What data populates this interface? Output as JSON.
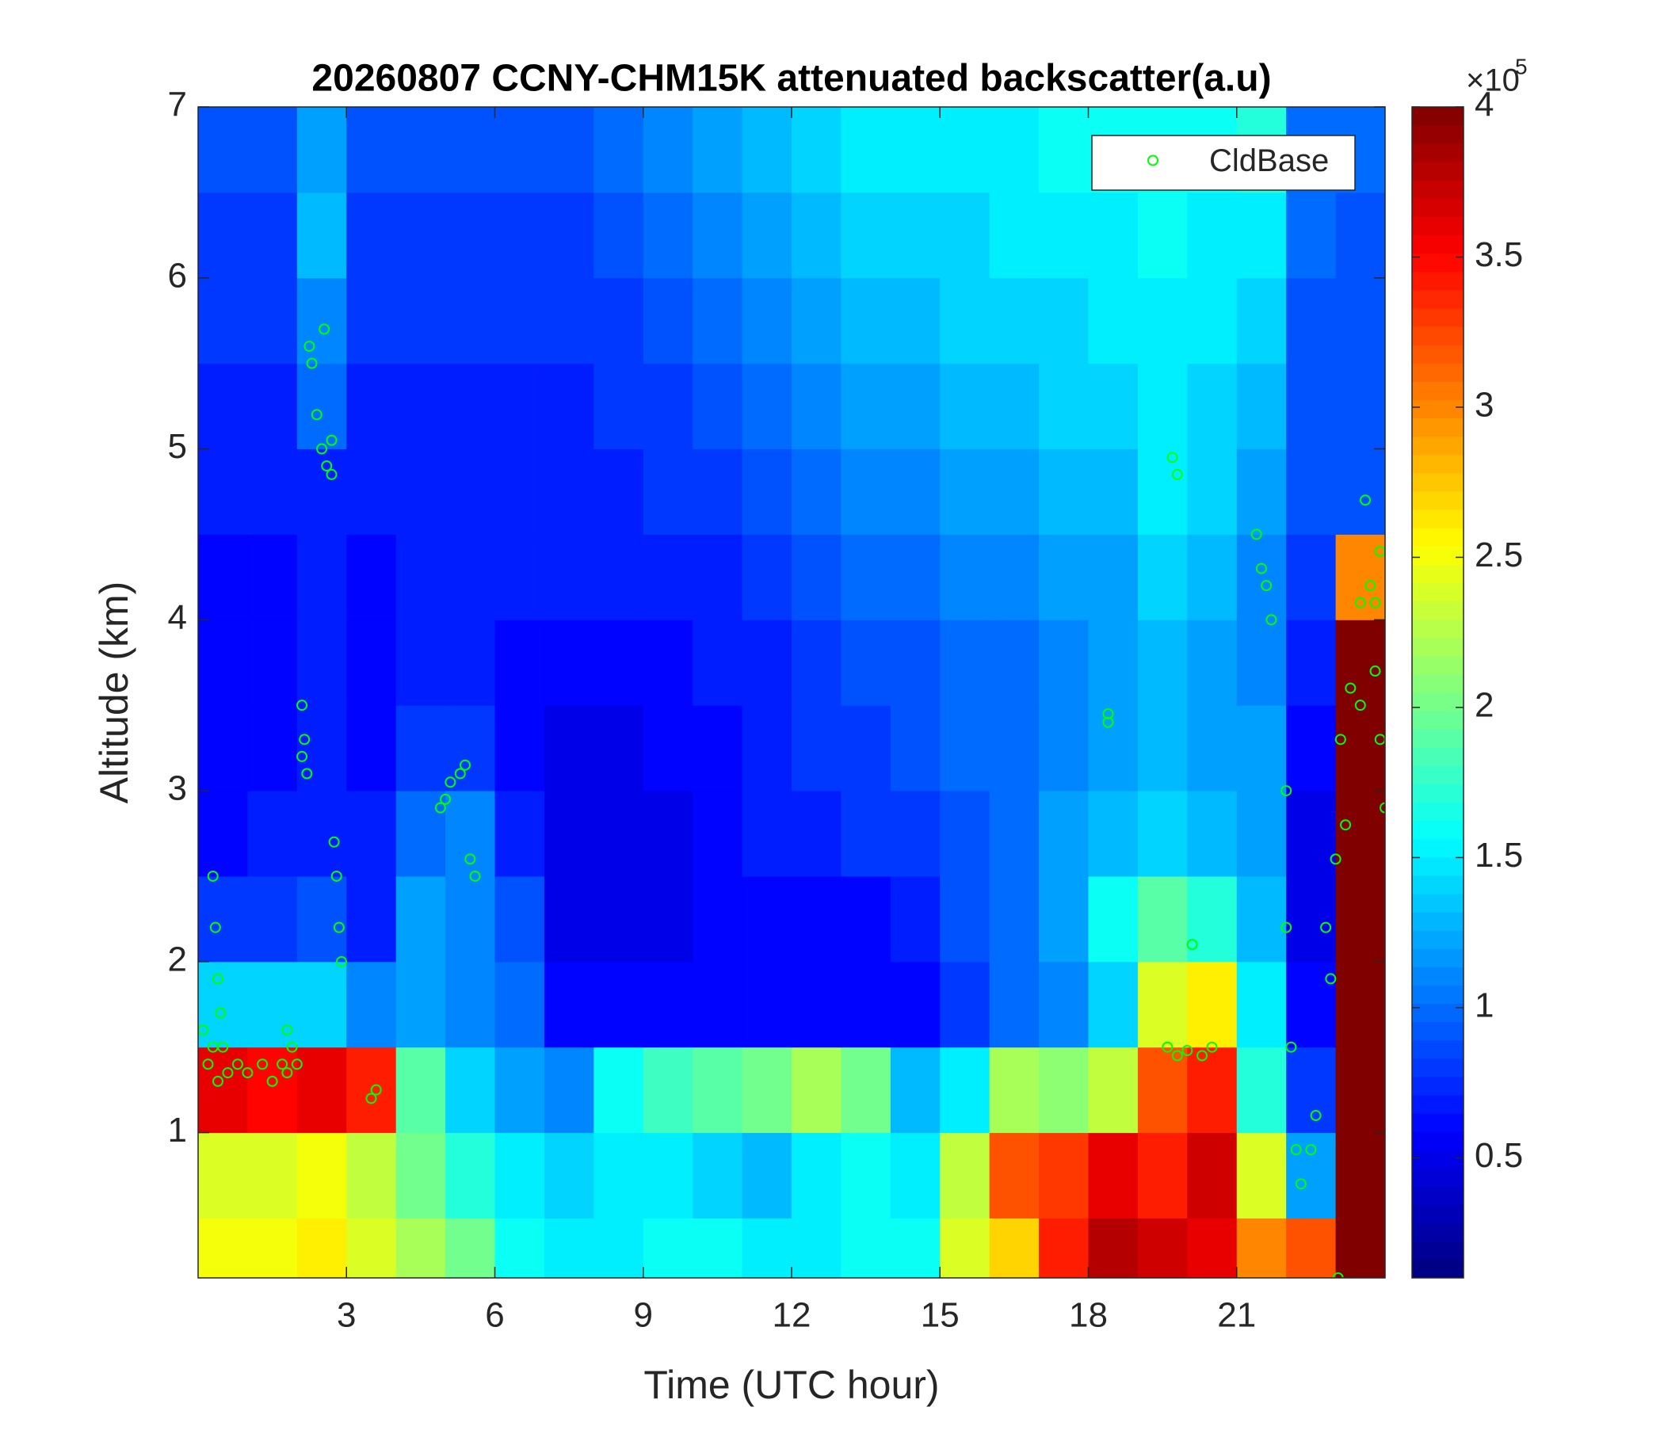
{
  "chart_data": {
    "type": "heatmap",
    "title": "20260807 CCNY-CHM15K attenuated backscatter(a.u)",
    "xlabel": "Time (UTC hour)",
    "ylabel": "Altitude (km)",
    "xlim": [
      0,
      24
    ],
    "ylim": [
      0.15,
      7
    ],
    "xticks": [
      3,
      6,
      9,
      12,
      15,
      18,
      21
    ],
    "yticks": [
      1,
      2,
      3,
      4,
      5,
      6,
      7
    ],
    "colormap": "jet",
    "clim": [
      0.1,
      4
    ],
    "cticks": [
      0.5,
      1,
      1.5,
      2,
      2.5,
      3,
      3.5,
      4
    ],
    "clabel_base": "×10",
    "clabel_exponent": "5",
    "legend_loc": "northeast",
    "heatmap": {
      "x_edges": [
        0,
        1,
        2,
        3,
        4,
        5,
        6,
        7,
        8,
        9,
        10,
        11,
        12,
        13,
        14,
        15,
        16,
        17,
        18,
        19,
        20,
        21,
        22,
        23,
        24
      ],
      "y_edges": [
        0.15,
        0.5,
        1,
        1.5,
        2,
        2.5,
        3,
        3.5,
        4,
        4.5,
        5,
        5.5,
        6,
        6.5,
        7
      ],
      "values": [
        [
          2.5,
          2.5,
          2.6,
          2.4,
          2.2,
          2.0,
          1.6,
          1.5,
          1.5,
          1.6,
          1.6,
          1.5,
          1.5,
          1.6,
          1.6,
          2.4,
          2.7,
          3.4,
          3.8,
          3.7,
          3.6,
          3.0,
          3.2,
          4
        ],
        [
          2.4,
          2.4,
          2.5,
          2.3,
          2.0,
          1.7,
          1.5,
          1.4,
          1.5,
          1.5,
          1.4,
          1.3,
          1.5,
          1.6,
          1.5,
          2.3,
          3.2,
          3.3,
          3.6,
          3.4,
          3.7,
          2.4,
          1.2,
          4
        ],
        [
          3.6,
          3.5,
          3.6,
          3.4,
          1.9,
          1.4,
          1.2,
          1.1,
          1.6,
          1.8,
          1.9,
          2.0,
          2.2,
          2.0,
          1.3,
          1.5,
          2.2,
          2.1,
          2.3,
          3.2,
          3.4,
          1.7,
          0.8,
          4
        ],
        [
          1.4,
          1.4,
          1.4,
          1.1,
          1.2,
          1.1,
          1.0,
          0.6,
          0.6,
          0.6,
          0.6,
          0.6,
          0.6,
          0.6,
          0.6,
          0.8,
          1.0,
          1.1,
          1.4,
          2.4,
          2.6,
          1.5,
          0.6,
          4
        ],
        [
          0.8,
          0.8,
          0.9,
          0.7,
          1.2,
          1.1,
          0.9,
          0.5,
          0.5,
          0.5,
          0.6,
          0.6,
          0.6,
          0.6,
          0.7,
          0.9,
          1.0,
          1.2,
          1.6,
          1.9,
          1.7,
          1.3,
          0.5,
          4
        ],
        [
          0.6,
          0.7,
          0.7,
          0.7,
          1.0,
          1.1,
          0.7,
          0.5,
          0.5,
          0.5,
          0.6,
          0.7,
          0.7,
          0.8,
          0.8,
          0.9,
          1.0,
          1.2,
          1.3,
          1.4,
          1.3,
          1.2,
          0.5,
          4
        ],
        [
          0.6,
          0.6,
          0.7,
          0.6,
          0.8,
          0.8,
          0.6,
          0.5,
          0.5,
          0.6,
          0.6,
          0.7,
          0.8,
          0.8,
          0.9,
          1.0,
          1.0,
          1.1,
          1.2,
          1.3,
          1.2,
          1.2,
          0.6,
          4
        ],
        [
          0.6,
          0.6,
          0.7,
          0.6,
          0.7,
          0.7,
          0.6,
          0.6,
          0.6,
          0.6,
          0.7,
          0.7,
          0.8,
          0.9,
          0.9,
          1.0,
          1.0,
          1.1,
          1.2,
          1.3,
          1.2,
          1.1,
          0.7,
          4
        ],
        [
          0.6,
          0.6,
          0.7,
          0.6,
          0.7,
          0.7,
          0.7,
          0.7,
          0.7,
          0.7,
          0.7,
          0.8,
          0.9,
          1.0,
          1.0,
          1.1,
          1.1,
          1.2,
          1.2,
          1.4,
          1.3,
          1.1,
          0.8,
          3.0
        ],
        [
          0.7,
          0.7,
          0.7,
          0.7,
          0.7,
          0.7,
          0.7,
          0.7,
          0.7,
          0.8,
          0.8,
          0.9,
          1.0,
          1.1,
          1.1,
          1.2,
          1.2,
          1.3,
          1.3,
          1.5,
          1.4,
          1.2,
          0.9,
          0.9
        ],
        [
          0.7,
          0.7,
          1.0,
          0.7,
          0.7,
          0.7,
          0.7,
          0.7,
          0.8,
          0.8,
          0.9,
          1.0,
          1.1,
          1.2,
          1.2,
          1.3,
          1.3,
          1.4,
          1.4,
          1.5,
          1.4,
          1.3,
          0.9,
          0.9
        ],
        [
          0.8,
          0.8,
          1.1,
          0.8,
          0.8,
          0.8,
          0.8,
          0.8,
          0.8,
          0.9,
          1.0,
          1.1,
          1.2,
          1.3,
          1.3,
          1.4,
          1.4,
          1.4,
          1.5,
          1.5,
          1.5,
          1.4,
          0.9,
          0.9
        ],
        [
          0.8,
          0.8,
          1.3,
          0.8,
          0.8,
          0.8,
          0.8,
          0.8,
          0.9,
          1.0,
          1.1,
          1.2,
          1.3,
          1.4,
          1.4,
          1.4,
          1.5,
          1.5,
          1.5,
          1.6,
          1.5,
          1.5,
          1.0,
          0.9
        ],
        [
          0.9,
          0.9,
          1.2,
          0.9,
          0.9,
          0.9,
          0.9,
          0.9,
          1.0,
          1.1,
          1.2,
          1.3,
          1.4,
          1.5,
          1.5,
          1.5,
          1.5,
          1.6,
          1.6,
          1.6,
          1.6,
          1.7,
          1.0,
          1.0
        ]
      ]
    },
    "series": [
      {
        "name": "CldBase",
        "color": "#00ff00",
        "x": [
          0.1,
          0.2,
          0.3,
          0.4,
          0.3,
          0.35,
          0.4,
          0.45,
          0.5,
          0.6,
          0.8,
          1.0,
          1.3,
          1.5,
          1.7,
          1.8,
          1.9,
          2.0,
          1.8,
          2.1,
          2.15,
          2.2,
          2.1,
          2.25,
          2.3,
          2.4,
          2.5,
          2.6,
          2.55,
          2.7,
          2.7,
          2.8,
          2.85,
          2.9,
          2.75,
          3.5,
          3.6,
          4.9,
          5.0,
          5.1,
          5.3,
          5.4,
          5.5,
          5.6,
          18.4,
          18.4,
          19.7,
          19.8,
          19.6,
          19.8,
          20.0,
          20.3,
          20.5,
          20.1,
          21.4,
          21.5,
          21.6,
          21.7,
          22.0,
          22.0,
          22.1,
          22.2,
          22.3,
          22.5,
          22.6,
          22.8,
          22.9,
          23.0,
          23.1,
          23.3,
          23.5,
          23.7,
          23.8,
          23.5,
          23.8,
          23.9,
          24.0,
          23.2,
          23.05,
          23.6,
          23.9
        ],
        "y": [
          1.6,
          1.4,
          1.5,
          1.3,
          2.5,
          2.2,
          1.9,
          1.7,
          1.5,
          1.35,
          1.4,
          1.35,
          1.4,
          1.3,
          1.4,
          1.35,
          1.5,
          1.4,
          1.6,
          3.5,
          3.3,
          3.1,
          3.2,
          5.6,
          5.5,
          5.2,
          5.0,
          4.9,
          5.7,
          4.85,
          5.05,
          2.5,
          2.2,
          2.0,
          2.7,
          1.2,
          1.25,
          2.9,
          2.95,
          3.05,
          3.1,
          3.15,
          2.6,
          2.5,
          3.45,
          3.4,
          4.95,
          4.85,
          1.5,
          1.45,
          1.48,
          1.45,
          1.5,
          2.1,
          4.5,
          4.3,
          4.2,
          4.0,
          3.0,
          2.2,
          1.5,
          0.9,
          0.7,
          0.9,
          1.1,
          2.2,
          1.9,
          2.6,
          3.3,
          3.6,
          4.1,
          4.2,
          4.1,
          3.5,
          3.7,
          3.3,
          2.9,
          2.8,
          0.15,
          4.7,
          4.4
        ]
      }
    ]
  }
}
